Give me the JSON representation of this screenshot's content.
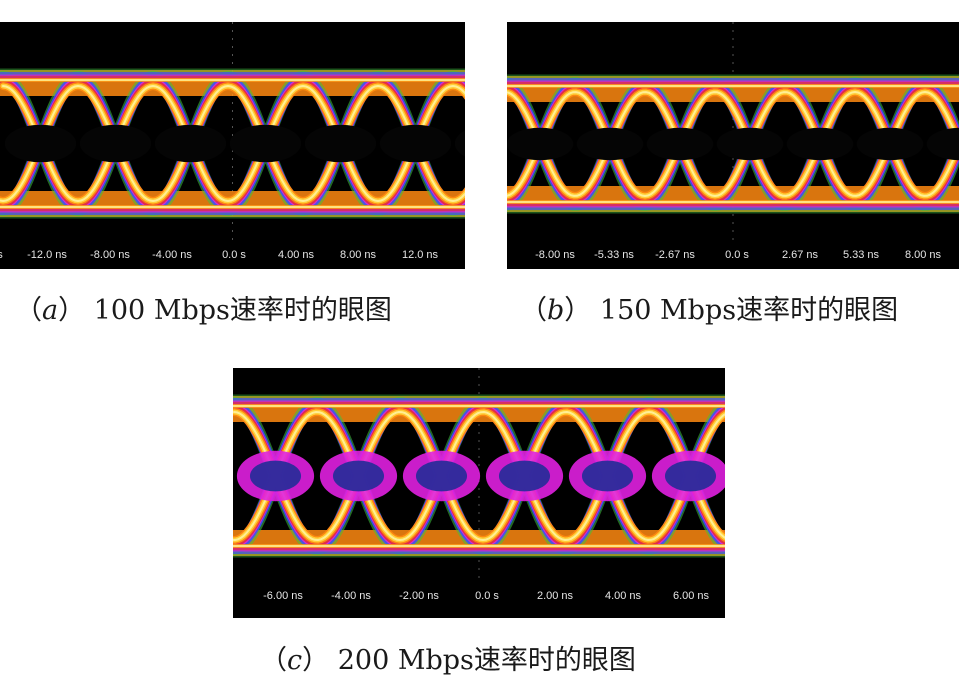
{
  "figures": [
    {
      "id": "a",
      "label": "a",
      "caption": "100 Mbps速率时的眼图",
      "tick_labels": [
        "s",
        "-12.0 ns",
        "-8.00 ns",
        "-4.00 ns",
        "0.0 s",
        "4.00 ns",
        "8.00 ns",
        "12.0 ns"
      ]
    },
    {
      "id": "b",
      "label": "b",
      "caption": "150 Mbps速率时的眼图",
      "tick_labels": [
        "-8.00 ns",
        "-5.33 ns",
        "-2.67 ns",
        "0.0 s",
        "2.67 ns",
        "5.33 ns",
        "8.00 ns"
      ]
    },
    {
      "id": "c",
      "label": "c",
      "caption": "200 Mbps速率时的眼图",
      "tick_labels": [
        "-6.00 ns",
        "-4.00 ns",
        "-2.00 ns",
        "0.0 s",
        "2.00 ns",
        "4.00 ns",
        "6.00 ns"
      ]
    }
  ],
  "colors": {
    "background": "#000000",
    "outer_noise": "#3fbf3f",
    "blue": "#3a4cff",
    "magenta": "#e020e0",
    "red": "#e0303a",
    "orange": "#ff8a10",
    "yellow": "#ffd23a",
    "core": "#fff3a0"
  }
}
